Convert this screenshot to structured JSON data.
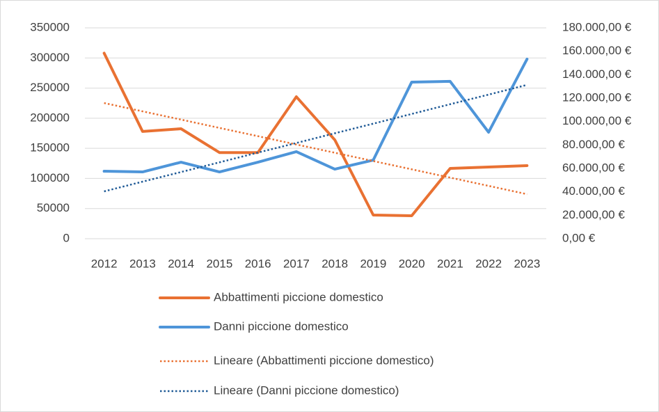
{
  "chart_data": {
    "type": "line",
    "categories": [
      "2012",
      "2013",
      "2014",
      "2015",
      "2016",
      "2017",
      "2018",
      "2019",
      "2020",
      "2021",
      "2022",
      "2023"
    ],
    "series": [
      {
        "name": "Abbattimenti piccione domestico",
        "color": "#e97132",
        "style": "solid",
        "axis": "y",
        "values": [
          308000,
          178000,
          182500,
          143000,
          143000,
          235600,
          164000,
          39300,
          38100,
          116700,
          119000,
          121300
        ]
      },
      {
        "name": "Danni piccione domestico",
        "color": "#4e95d9",
        "style": "solid",
        "axis": "y2",
        "values": [
          57600,
          57000,
          65300,
          57000,
          65300,
          74300,
          59400,
          67100,
          133700,
          134300,
          90900,
          153300
        ]
      },
      {
        "name": "Lineare (Abbattimenti piccione domestico)",
        "color": "#e97132",
        "style": "dotted",
        "axis": "y",
        "values": [
          225200,
          211400,
          197700,
          183900,
          170200,
          156400,
          142700,
          128900,
          115200,
          101400,
          87700,
          73900
        ]
      },
      {
        "name": "Lineare (Danni piccione domestico)",
        "color": "#1f5a96",
        "style": "dotted",
        "axis": "y2",
        "values": [
          40400,
          48700,
          56900,
          65200,
          73500,
          81700,
          90000,
          98200,
          106500,
          114800,
          123000,
          131300
        ]
      }
    ],
    "ylim": [
      0,
      350000
    ],
    "yticks": [
      0,
      50000,
      100000,
      150000,
      200000,
      250000,
      300000,
      350000
    ],
    "y2lim": [
      0,
      180000
    ],
    "y2ticks": [
      {
        "value": 0,
        "label": "0,00 €"
      },
      {
        "value": 20000,
        "label": "20.000,00 €"
      },
      {
        "value": 40000,
        "label": "40.000,00 €"
      },
      {
        "value": 60000,
        "label": "60.000,00 €"
      },
      {
        "value": 80000,
        "label": "80.000,00 €"
      },
      {
        "value": 100000,
        "label": "100.000,00 €"
      },
      {
        "value": 120000,
        "label": "120.000,00 €"
      },
      {
        "value": 140000,
        "label": "140.000,00 €"
      },
      {
        "value": 160000,
        "label": "160.000,00 €"
      },
      {
        "value": 180000,
        "label": "180.000,00 €"
      }
    ],
    "grid": true,
    "legend": "bottom"
  }
}
